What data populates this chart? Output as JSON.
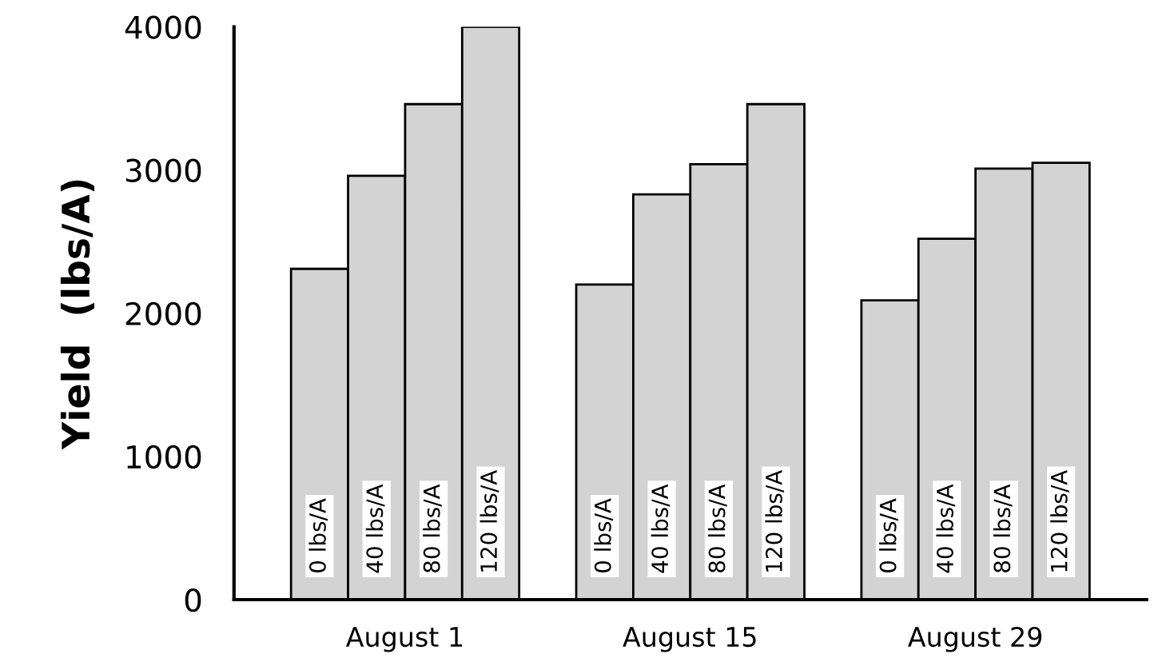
{
  "chart_data": {
    "type": "bar",
    "ylabel": "Yield  (lbs/A)",
    "categories": [
      "August 1",
      "August 15",
      "August 29"
    ],
    "series": [
      {
        "name": "0 lbs/A",
        "color": "#d3d3d3",
        "values": [
          2310,
          2200,
          2090
        ]
      },
      {
        "name": "40 lbs/A",
        "color": "#d3d3d3",
        "values": [
          2960,
          2830,
          2520
        ]
      },
      {
        "name": "80 lbs/A",
        "color": "#d3d3d3",
        "values": [
          3460,
          3040,
          3010
        ]
      },
      {
        "name": "120 lbs/A",
        "color": "#d3d3d3",
        "values": [
          4000,
          3460,
          3050
        ]
      }
    ],
    "ylim": [
      0,
      4000
    ],
    "yticks": [
      0,
      1000,
      2000,
      3000,
      4000
    ],
    "grid": false,
    "legend": false
  }
}
